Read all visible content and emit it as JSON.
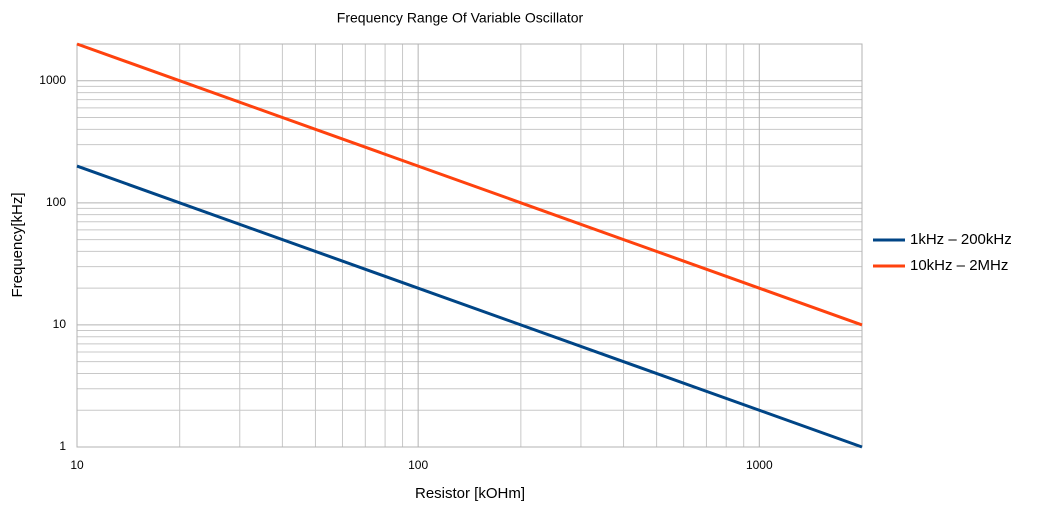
{
  "chart_data": {
    "type": "line",
    "title": "Frequency Range Of Variable Oscillator",
    "xlabel": "Resistor [kOHm]",
    "ylabel": "Frequency[kHz]",
    "x": [
      10,
      2000
    ],
    "series": [
      {
        "name": "1kHz – 200kHz",
        "color": "#004586",
        "values": [
          200,
          1
        ]
      },
      {
        "name": "10kHz – 2MHz",
        "color": "#ff420e",
        "values": [
          2000,
          10
        ]
      }
    ],
    "xlim": [
      10,
      2000
    ],
    "ylim": [
      1,
      2000
    ],
    "xticks": [
      10,
      100,
      1000
    ],
    "yticks": [
      1,
      10,
      100,
      1000
    ],
    "xlog": true,
    "ylog": true,
    "grid": true,
    "minor_grid": true,
    "legend": "right"
  }
}
